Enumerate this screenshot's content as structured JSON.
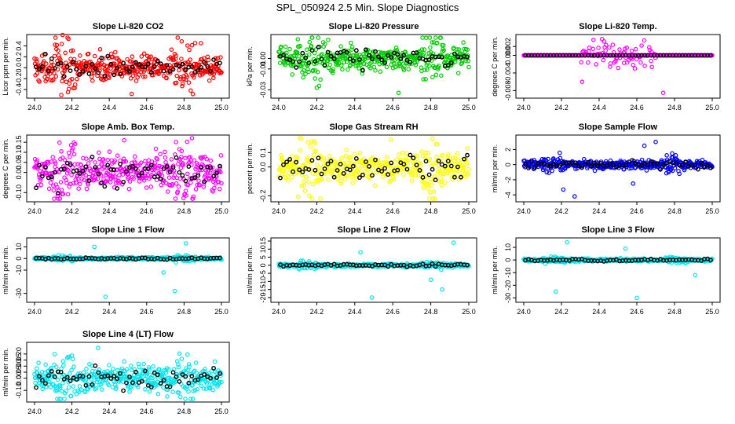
{
  "chart_data": {
    "type": "scatter",
    "title": "SPL_050924  2.5 Min. Slope Diagnostics",
    "panels": [
      {
        "title": "Slope Li-820 CO2",
        "ylabel": "Licor ppm per min.",
        "color": "#ff0000",
        "xlim": [
          24.0,
          25.0
        ],
        "ylim": [
          -0.5,
          0.55
        ],
        "xticks": [
          "24.0",
          "24.2",
          "24.4",
          "24.6",
          "24.8",
          "25.0"
        ],
        "yticks": [
          "-0.4",
          "-0.2",
          "0.0",
          "0.2",
          "0.4"
        ],
        "spread": 0.17,
        "outliers": [
          0.6,
          -0.48,
          0.45
        ]
      },
      {
        "title": "Slope Li-820 Pressure",
        "ylabel": "kPa per min.",
        "color": "#00cc00",
        "xlim": [
          24.0,
          25.0
        ],
        "ylim": [
          -0.035,
          0.02
        ],
        "xticks": [
          "24.0",
          "24.2",
          "24.4",
          "24.6",
          "24.8",
          "25.0"
        ],
        "yticks": [
          "-0.03",
          "-0.01",
          "0.00"
        ],
        "spread": 0.008,
        "outliers": [
          0.018,
          -0.033,
          -0.028
        ]
      },
      {
        "title": "Slope Li-820 Temp.",
        "ylabel": "degrees C per min.",
        "color": "#ff00ff",
        "xlim": [
          24.0,
          25.0
        ],
        "ylim": [
          -0.009,
          0.004
        ],
        "xticks": [
          "24.0",
          "24.2",
          "24.4",
          "24.6",
          "24.8",
          "25.0"
        ],
        "yticks": [
          "-0.008",
          "-0.004",
          "0.000",
          "0.002"
        ],
        "spread": 0.0,
        "outliers": [
          0.0035,
          -0.0085,
          -0.006
        ]
      },
      {
        "title": "Slope Amb. Box Temp.",
        "ylabel": "degrees C per min.",
        "color": "#ff00ff",
        "xlim": [
          24.0,
          25.0
        ],
        "ylim": [
          -0.13,
          0.17
        ],
        "xticks": [
          "24.0",
          "24.2",
          "24.4",
          "24.6",
          "24.8",
          "25.0"
        ],
        "yticks": [
          "-0.10",
          "0.00",
          "0.05",
          "0.10",
          "0.15"
        ],
        "spread": 0.06,
        "outliers": [
          0.16,
          -0.12
        ]
      },
      {
        "title": "Slope Gas Stream RH",
        "ylabel": "percent per min.",
        "color": "#ffff00",
        "xlim": [
          24.0,
          25.0
        ],
        "ylim": [
          -0.22,
          0.2
        ],
        "xticks": [
          "24.0",
          "24.2",
          "24.4",
          "24.6",
          "24.8",
          "25.0"
        ],
        "yticks": [
          "-0.2",
          "0.0",
          "0.1"
        ],
        "spread": 0.07,
        "outliers": [
          0.19,
          -0.2
        ]
      },
      {
        "title": "Slope Sample Flow",
        "ylabel": "ml/min per min.",
        "color": "#0000ff",
        "xlim": [
          24.0,
          25.0
        ],
        "ylim": [
          -4.5,
          3.5
        ],
        "xticks": [
          "24.0",
          "24.2",
          "24.4",
          "24.6",
          "24.8",
          "25.0"
        ],
        "yticks": [
          "-4",
          "-2",
          "0",
          "2"
        ],
        "spread": 0.4,
        "outliers": [
          3.0,
          -4.2,
          2.5,
          -3.3,
          -2.5
        ]
      },
      {
        "title": "Slope Line 1 Flow",
        "ylabel": "ml/min per min.",
        "color": "#00e5ee",
        "xlim": [
          24.0,
          25.0
        ],
        "ylim": [
          -35,
          15
        ],
        "xticks": [
          "24.0",
          "24.2",
          "24.4",
          "24.6",
          "24.8",
          "25.0"
        ],
        "yticks": [
          "-30",
          "-10",
          "0",
          "10"
        ],
        "spread": 0.8,
        "outliers": [
          13,
          -33,
          -28,
          10,
          -12
        ]
      },
      {
        "title": "Slope Line 2 Flow",
        "ylabel": "ml/min per min.",
        "color": "#00e5ee",
        "xlim": [
          24.0,
          25.0
        ],
        "ylim": [
          -21,
          15
        ],
        "xticks": [
          "24.0",
          "24.2",
          "24.4",
          "24.6",
          "24.8",
          "25.0"
        ],
        "yticks": [
          "-20",
          "-15",
          "-10",
          "-5",
          "0",
          "5",
          "10",
          "15"
        ],
        "spread": 0.8,
        "outliers": [
          14,
          -20,
          -15,
          8,
          -9
        ]
      },
      {
        "title": "Slope Line 3 Flow",
        "ylabel": "ml/min per min.",
        "color": "#00e5ee",
        "xlim": [
          24.0,
          25.0
        ],
        "ylim": [
          -31,
          15
        ],
        "xticks": [
          "24.0",
          "24.2",
          "24.4",
          "24.6",
          "24.8",
          "25.0"
        ],
        "yticks": [
          "-30",
          "-20",
          "-10",
          "0",
          "10"
        ],
        "spread": 0.8,
        "outliers": [
          14,
          -30,
          -25,
          9,
          -12
        ]
      },
      {
        "title": "Slope Line 4 (LT) Flow",
        "ylabel": "ml/min per min.",
        "color": "#00e5ee",
        "xlim": [
          24.0,
          25.0
        ],
        "ylim": [
          -0.17,
          0.27
        ],
        "xticks": [
          "24.0",
          "24.2",
          "24.4",
          "24.6",
          "24.8",
          "25.0"
        ],
        "yticks": [
          "-0.10",
          "0.00",
          "0.05",
          "0.10",
          "0.15",
          "0.20"
        ],
        "spread": 0.07,
        "outliers": [
          0.25,
          -0.15
        ]
      }
    ]
  }
}
